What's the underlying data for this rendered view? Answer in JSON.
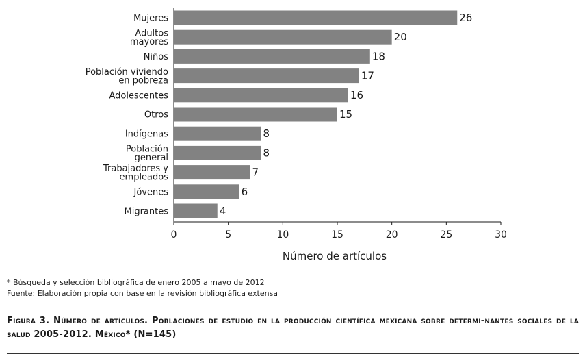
{
  "chart_data": {
    "type": "bar",
    "orientation": "horizontal",
    "categories": [
      [
        "Mujeres"
      ],
      [
        "Adultos",
        "mayores"
      ],
      [
        "Niños"
      ],
      [
        "Población viviendo",
        "en pobreza"
      ],
      [
        "Adolescentes"
      ],
      [
        "Otros"
      ],
      [
        "Indígenas"
      ],
      [
        "Población",
        "general"
      ],
      [
        "Trabajadores y",
        "empleados"
      ],
      [
        "Jóvenes"
      ],
      [
        "Migrantes"
      ]
    ],
    "values": [
      26,
      20,
      18,
      17,
      16,
      15,
      8,
      8,
      7,
      6,
      4
    ],
    "xlabel": "Número de artículos",
    "ylabel": "",
    "xlim": [
      0,
      30
    ],
    "xticks": [
      0,
      5,
      10,
      15,
      20,
      25,
      30
    ],
    "bar_color": "#828282",
    "grid": false,
    "data_labels": true
  },
  "notes": {
    "line1": "* Búsqueda y selección bibliográfica de enero 2005 a mayo de 2012",
    "line2": "Fuente: Elaboración propia con base en la revisión bibliográfica extensa"
  },
  "caption": "Figura 3. Número de artículos. Poblaciones de estudio en la producción científica mexicana sobre determi-nantes sociales de la salud 2005-2012. México* (N=145)"
}
